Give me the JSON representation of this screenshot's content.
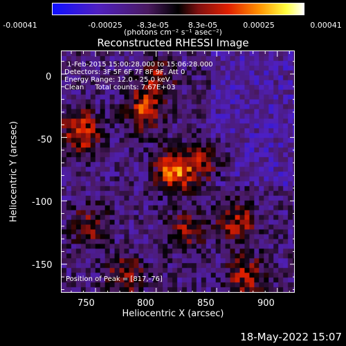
{
  "chart_data": {
    "type": "heatmap",
    "title": "Reconstructed RHESSI Image",
    "xlabel": "Heliocentric X (arcsec)",
    "ylabel": "Heliocentric Y (arcsec)",
    "xlim": [
      722,
      915
    ],
    "ylim": [
      -173,
      18
    ],
    "xticks": [
      "750",
      "800",
      "850",
      "900"
    ],
    "yticks": [
      "0",
      "-50",
      "-100",
      "-150"
    ],
    "colorbar": {
      "ticks": [
        "-0.00041",
        "-0.00025",
        "-8.3e-05",
        "8.3e-05",
        "0.00025",
        "0.00041"
      ],
      "units": "(photons cm⁻² s⁻¹ asec⁻²)",
      "range": [
        -0.00041,
        0.00041
      ],
      "colors": [
        "#1010ff",
        "#5020c0",
        "#4a1a60",
        "#000000",
        "#801010",
        "#e02000",
        "#ff9000",
        "#ffff40",
        "#ffffff"
      ]
    },
    "annotations": {
      "time": "1-Feb-2015 15:00:28.000 to 15:06:28.000",
      "detectors": "Detectors: 3F 5F 6F 7F 8F 9F, Att 0",
      "energy": "Energy Range: 12.0 - 25.0 keV",
      "method": "Clean     Total counts: 7.67E+03",
      "peak": "Position of Peak = [817,-76]"
    },
    "sources": [
      {
        "x": 817,
        "y": -76,
        "peak": 0.00041
      },
      {
        "x": 738,
        "y": -46,
        "peak": 0.00032
      },
      {
        "x": 790,
        "y": -30,
        "peak": 0.00027
      },
      {
        "x": 800,
        "y": -5,
        "peak": 0.00022
      },
      {
        "x": 845,
        "y": -68,
        "peak": 0.0002
      },
      {
        "x": 868,
        "y": -118,
        "peak": 0.00025
      },
      {
        "x": 875,
        "y": -160,
        "peak": 0.00024
      },
      {
        "x": 775,
        "y": -160,
        "peak": 0.00022
      },
      {
        "x": 745,
        "y": -120,
        "peak": 0.0002
      },
      {
        "x": 825,
        "y": -125,
        "peak": 0.0002
      }
    ]
  },
  "timestamp": "18-May-2022 15:07"
}
